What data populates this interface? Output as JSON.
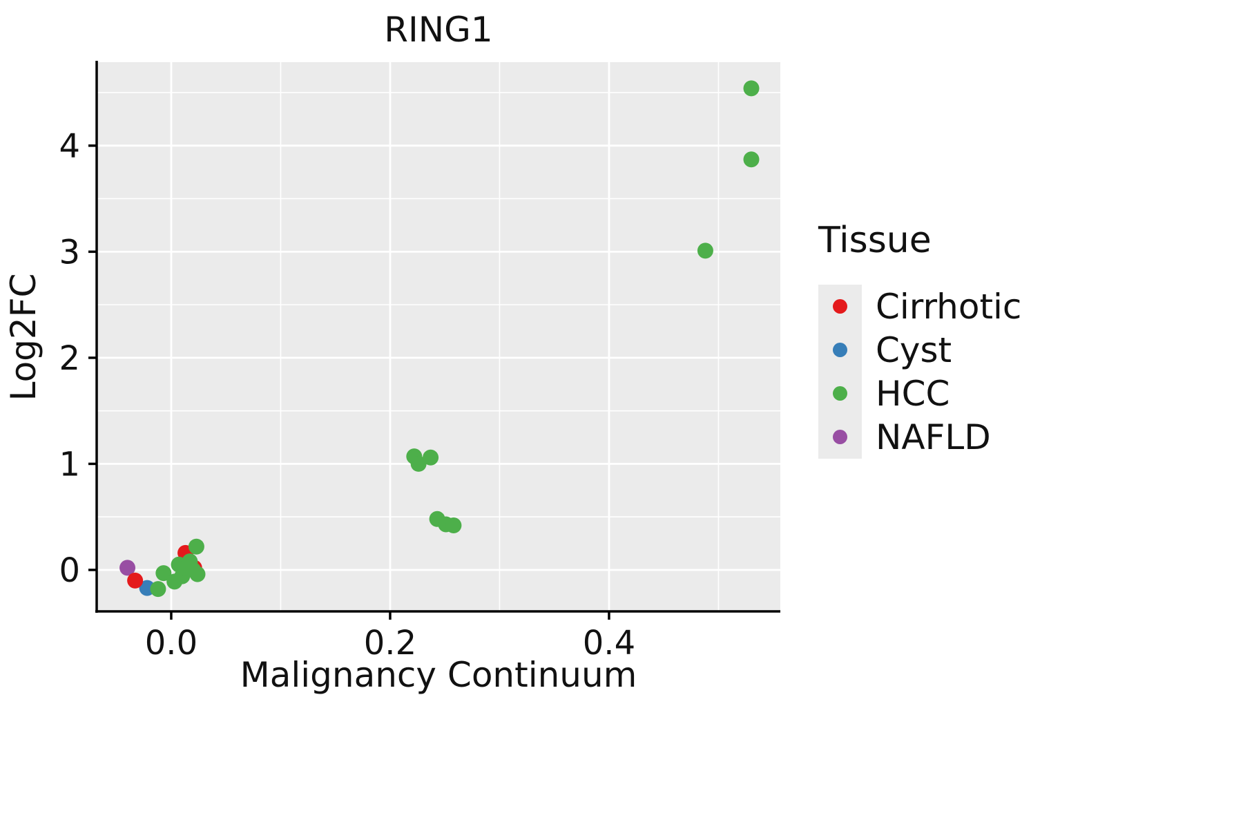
{
  "chart_data": {
    "type": "scatter",
    "title": "RING1",
    "xlabel": "Malignancy Continuum",
    "ylabel": "Log2FC",
    "xlim": [
      -0.0681,
      0.5565
    ],
    "ylim": [
      -0.391,
      4.787
    ],
    "x_ticks": [
      {
        "value": 0.0,
        "label": "0.0"
      },
      {
        "value": 0.2,
        "label": "0.2"
      },
      {
        "value": 0.4,
        "label": "0.4"
      }
    ],
    "y_ticks": [
      {
        "value": 0,
        "label": "0"
      },
      {
        "value": 1,
        "label": "1"
      },
      {
        "value": 2,
        "label": "2"
      },
      {
        "value": 3,
        "label": "3"
      },
      {
        "value": 4,
        "label": "4"
      }
    ],
    "x_minor": [
      0.1,
      0.3,
      0.5
    ],
    "y_minor": [
      0.5,
      1.5,
      2.5,
      3.5,
      4.5
    ],
    "grid": true,
    "panel_color": "#ebebeb",
    "grid_color": "#ffffff",
    "series": [
      {
        "name": "Cirrhotic",
        "color": "#e41a1c",
        "points": [
          [
            -0.033,
            -0.1
          ],
          [
            0.013,
            0.16
          ],
          [
            0.021,
            0.02
          ]
        ]
      },
      {
        "name": "Cyst",
        "color": "#377eb8",
        "points": [
          [
            -0.022,
            -0.17
          ]
        ]
      },
      {
        "name": "HCC",
        "color": "#4daf4a",
        "points": [
          [
            -0.012,
            -0.18
          ],
          [
            -0.007,
            -0.03
          ],
          [
            0.003,
            -0.11
          ],
          [
            0.007,
            0.05
          ],
          [
            0.01,
            -0.06
          ],
          [
            0.013,
            0.02
          ],
          [
            0.017,
            0.08
          ],
          [
            0.02,
            0.0
          ],
          [
            0.023,
            0.22
          ],
          [
            0.024,
            -0.04
          ],
          [
            0.222,
            1.07
          ],
          [
            0.226,
            1.0
          ],
          [
            0.237,
            1.06
          ],
          [
            0.243,
            0.48
          ],
          [
            0.251,
            0.43
          ],
          [
            0.258,
            0.42
          ],
          [
            0.488,
            3.01
          ],
          [
            0.53,
            4.54
          ],
          [
            0.53,
            3.87
          ]
        ]
      },
      {
        "name": "NAFLD",
        "color": "#984ea3",
        "points": [
          [
            -0.04,
            0.02
          ]
        ]
      }
    ]
  },
  "legend": {
    "title": "Tissue",
    "items": [
      {
        "label": "Cirrhotic",
        "color": "#e41a1c"
      },
      {
        "label": "Cyst",
        "color": "#377eb8"
      },
      {
        "label": "HCC",
        "color": "#4daf4a"
      },
      {
        "label": "NAFLD",
        "color": "#984ea3"
      }
    ]
  }
}
